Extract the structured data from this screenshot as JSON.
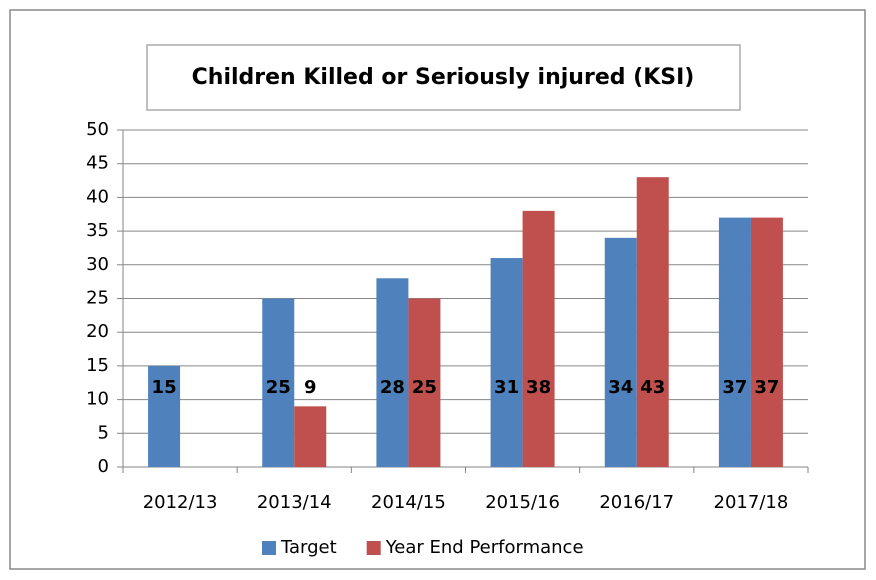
{
  "chart_data": {
    "type": "bar",
    "title": "Children Killed or Seriously injured (KSI)",
    "categories": [
      "2012/13",
      "2013/14",
      "2014/15",
      "2015/16",
      "2016/17",
      "2017/18"
    ],
    "series": [
      {
        "name": "Target",
        "color": "#4f81bd",
        "values": [
          15,
          25,
          28,
          31,
          34,
          37
        ]
      },
      {
        "name": "Year End Performance",
        "color": "#c0504d",
        "values": [
          null,
          9,
          25,
          38,
          43,
          37
        ]
      }
    ],
    "ylim": [
      0,
      50
    ],
    "yticks": [
      0,
      5,
      10,
      15,
      20,
      25,
      30,
      35,
      40,
      45,
      50
    ],
    "grid": true,
    "legend": "bottom"
  }
}
